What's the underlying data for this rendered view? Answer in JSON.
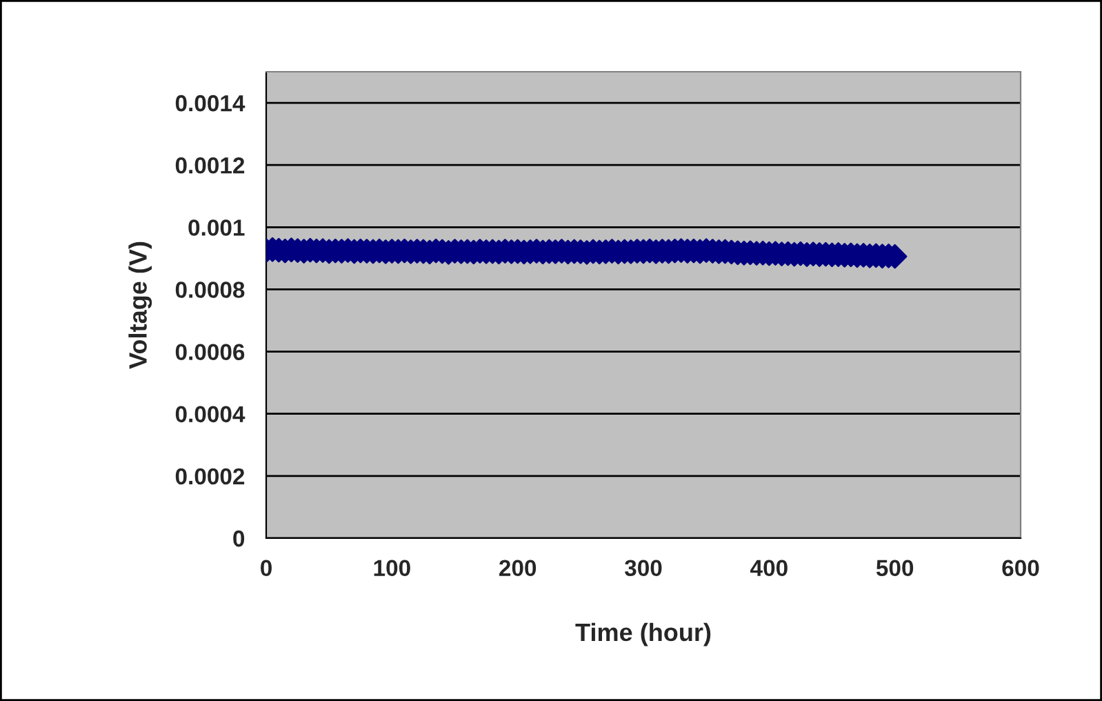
{
  "chart_data": {
    "type": "scatter",
    "xlabel": "Time (hour)",
    "ylabel": "Voltage (V)",
    "marker": "diamond",
    "grid": "y",
    "xlim": [
      0,
      600
    ],
    "xticks": [
      0,
      100,
      200,
      300,
      400,
      500,
      600
    ],
    "ylim": [
      0,
      0.0015
    ],
    "yticks": [
      0,
      0.0002,
      0.0004,
      0.0006,
      0.0008,
      0.001,
      0.0012,
      0.0014
    ],
    "x": [
      0,
      5,
      10,
      15,
      20,
      25,
      30,
      35,
      40,
      45,
      50,
      55,
      60,
      65,
      70,
      75,
      80,
      85,
      90,
      95,
      100,
      105,
      110,
      115,
      120,
      125,
      130,
      135,
      140,
      145,
      150,
      155,
      160,
      165,
      170,
      175,
      180,
      185,
      190,
      195,
      200,
      205,
      210,
      215,
      220,
      225,
      230,
      235,
      240,
      245,
      250,
      255,
      260,
      265,
      270,
      275,
      280,
      285,
      290,
      295,
      300,
      305,
      310,
      315,
      320,
      325,
      330,
      335,
      340,
      345,
      350,
      355,
      360,
      365,
      370,
      375,
      380,
      385,
      390,
      395,
      400,
      405,
      410,
      415,
      420,
      425,
      430,
      435,
      440,
      445,
      450,
      455,
      460,
      465,
      470,
      475,
      480,
      485,
      490,
      495,
      500
    ],
    "series": [
      {
        "color": "#000080",
        "values": [
          0.000925,
          0.000928,
          0.000926,
          0.000924,
          0.000927,
          0.000925,
          0.000923,
          0.000926,
          0.000924,
          0.000925,
          0.000922,
          0.000924,
          0.000923,
          0.000925,
          0.000922,
          0.000924,
          0.000923,
          0.000922,
          0.000924,
          0.000921,
          0.000923,
          0.000922,
          0.000924,
          0.000921,
          0.000923,
          0.000922,
          0.00092,
          0.000924,
          0.000922,
          0.000919,
          0.000923,
          0.000921,
          0.000922,
          0.00092,
          0.000923,
          0.000921,
          0.000922,
          0.00092,
          0.000923,
          0.000921,
          0.000922,
          0.00092,
          0.000921,
          0.000923,
          0.00092,
          0.000922,
          0.000921,
          0.000923,
          0.00092,
          0.000922,
          0.000921,
          0.000919,
          0.000922,
          0.00092,
          0.000921,
          0.000923,
          0.00092,
          0.000922,
          0.000921,
          0.000923,
          0.000922,
          0.000924,
          0.000921,
          0.000923,
          0.000922,
          0.000924,
          0.000925,
          0.000923,
          0.000924,
          0.000922,
          0.000925,
          0.000923,
          0.000921,
          0.000922,
          0.00092,
          0.000918,
          0.000917,
          0.000918,
          0.000916,
          0.000917,
          0.000915,
          0.000916,
          0.000914,
          0.000915,
          0.000913,
          0.000915,
          0.000912,
          0.000914,
          0.000912,
          0.000913,
          0.000911,
          0.000912,
          0.00091,
          0.000911,
          0.000909,
          0.00091,
          0.000908,
          0.000909,
          0.000907,
          0.000908,
          0.000906
        ]
      }
    ]
  }
}
